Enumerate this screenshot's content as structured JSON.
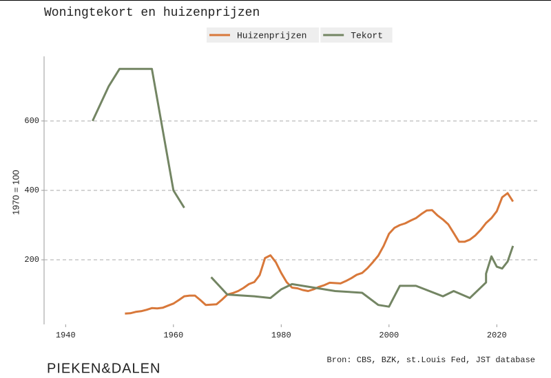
{
  "chart_data": {
    "type": "line",
    "title": "Woningtekort en huizenprijzen",
    "y_label": "1970 = 100",
    "source": "Bron: CBS, BZK, st.Louis Fed, JST database",
    "logo": "PIEKEN&DALEN",
    "xlim": [
      1936,
      2027.5
    ],
    "xticks": [
      1940,
      1960,
      1980,
      2000,
      2020
    ],
    "ylim": [
      14,
      786
    ],
    "yticks": [
      200,
      400,
      600
    ],
    "grid": true,
    "legend": "top",
    "series": [
      {
        "name": "Huizenprijzen",
        "color": "#d8783a",
        "x": [
          1951,
          1952,
          1953,
          1954,
          1955,
          1956,
          1957,
          1958,
          1959,
          1960,
          1961,
          1962,
          1963,
          1964,
          1965,
          1966,
          1967,
          1968,
          1969,
          1970,
          1971,
          1972,
          1973,
          1974,
          1975,
          1976,
          1977,
          1978,
          1979,
          1980,
          1981,
          1982,
          1983,
          1984,
          1985,
          1986,
          1987,
          1988,
          1989,
          1990,
          1991,
          1992,
          1993,
          1994,
          1995,
          1996,
          1997,
          1998,
          1999,
          2000,
          2001,
          2002,
          2003,
          2004,
          2005,
          2006,
          2007,
          2008,
          2009,
          2010,
          2011,
          2012,
          2013,
          2014,
          2015,
          2016,
          2017,
          2018,
          2019,
          2020,
          2021,
          2022,
          2023
        ],
        "values": [
          45,
          46,
          50,
          52,
          56,
          61,
          60,
          62,
          68,
          74,
          84,
          95,
          97,
          97,
          84,
          70,
          71,
          72,
          85,
          100,
          104,
          110,
          119,
          130,
          136,
          156,
          205,
          213,
          193,
          162,
          136,
          120,
          118,
          113,
          110,
          115,
          122,
          127,
          134,
          133,
          132,
          139,
          147,
          157,
          162,
          176,
          193,
          212,
          240,
          275,
          292,
          300,
          305,
          313,
          320,
          332,
          342,
          343,
          328,
          316,
          302,
          277,
          252,
          252,
          258,
          270,
          286,
          306,
          320,
          340,
          380,
          392,
          368
        ]
      },
      {
        "name": "Tekort",
        "color": "#738563",
        "x": [
          1945,
          1948,
          1950,
          1956,
          1960,
          1962,
          1965,
          1967,
          1970,
          1975,
          1978,
          1980,
          1982,
          1990,
          1995,
          1998,
          2000,
          2002,
          2005,
          2010,
          2012,
          2015,
          2018,
          2018,
          2019,
          2020,
          2021,
          2022,
          2023
        ],
        "values": [
          600,
          700,
          750,
          750,
          400,
          350,
          null,
          150,
          100,
          95,
          90,
          115,
          130,
          110,
          105,
          70,
          65,
          125,
          125,
          95,
          110,
          90,
          135,
          160,
          210,
          180,
          175,
          195,
          240
        ]
      }
    ]
  }
}
